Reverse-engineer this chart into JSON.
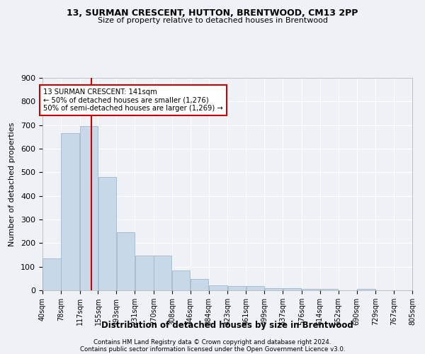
{
  "title1": "13, SURMAN CRESCENT, HUTTON, BRENTWOOD, CM13 2PP",
  "title2": "Size of property relative to detached houses in Brentwood",
  "xlabel": "Distribution of detached houses by size in Brentwood",
  "ylabel": "Number of detached properties",
  "bar_edges": [
    40,
    78,
    117,
    155,
    193,
    231,
    270,
    308,
    346,
    384,
    423,
    461,
    499,
    537,
    576,
    614,
    652,
    690,
    729,
    767,
    805
  ],
  "bar_heights": [
    135,
    665,
    695,
    480,
    245,
    148,
    148,
    83,
    48,
    22,
    18,
    18,
    10,
    8,
    6,
    5,
    0,
    5,
    0,
    0
  ],
  "bar_color": "#c8d8e8",
  "bar_edgecolor": "#a0b8cc",
  "property_size": 141,
  "red_line_color": "#cc0000",
  "annotation_line1": "13 SURMAN CRESCENT: 141sqm",
  "annotation_line2": "← 50% of detached houses are smaller (1,276)",
  "annotation_line3": "50% of semi-detached houses are larger (1,269) →",
  "annotation_box_color": "white",
  "annotation_box_edgecolor": "#cc0000",
  "ylim": [
    0,
    900
  ],
  "yticks": [
    0,
    100,
    200,
    300,
    400,
    500,
    600,
    700,
    800,
    900
  ],
  "background_color": "#eef2f7",
  "grid_color": "white",
  "footer1": "Contains HM Land Registry data © Crown copyright and database right 2024.",
  "footer2": "Contains public sector information licensed under the Open Government Licence v3.0."
}
